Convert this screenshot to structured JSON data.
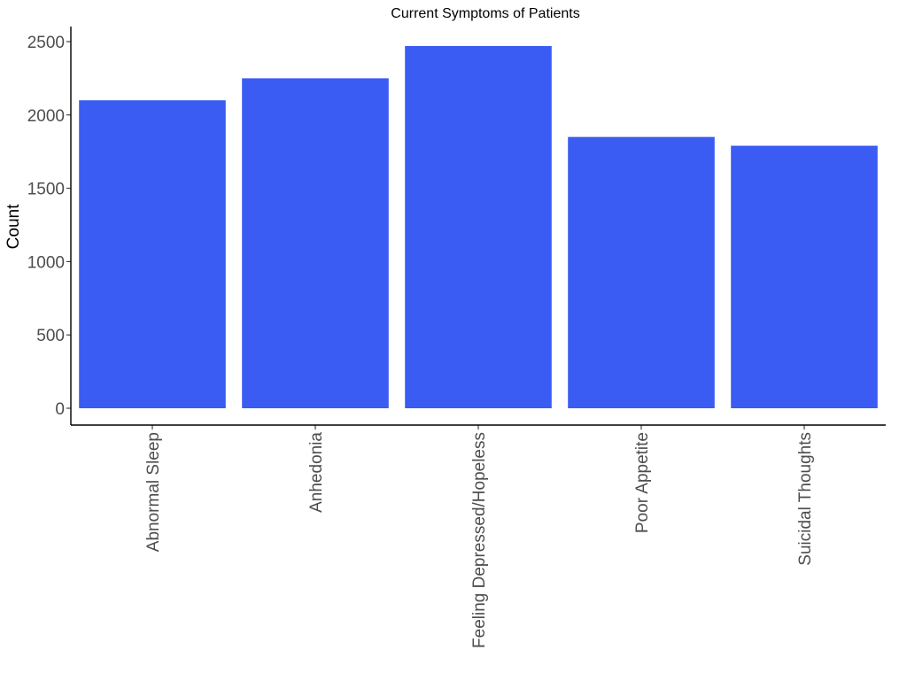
{
  "chart_data": {
    "type": "bar",
    "title": "Current Symptoms of Patients",
    "xlabel": "",
    "ylabel": "Count",
    "categories": [
      "Abnormal Sleep",
      "Anhedonia",
      "Feeling Depressed/Hopeless",
      "Poor Appetite",
      "Suicidal Thoughts"
    ],
    "values": [
      2100,
      2250,
      2470,
      1850,
      1790
    ],
    "ylim": [
      0,
      2600
    ],
    "yticks": [
      "0",
      "500",
      "1000",
      "1500",
      "2000",
      "2500"
    ],
    "grid": false,
    "legend": "none",
    "bar_color": "#3A5CF2",
    "axis_color": "#000000",
    "tick_label_color": "#4d4d4d"
  }
}
